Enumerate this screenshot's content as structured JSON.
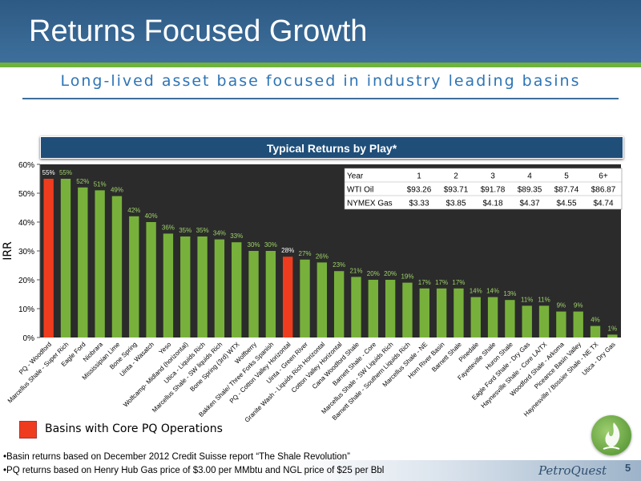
{
  "slide": {
    "title": "Returns Focused Growth",
    "subtitle": "Long-lived asset base focused in industry leading basins",
    "page_number": "5",
    "logo_text": "PetroQuest"
  },
  "chart_banner": "Typical Returns by Play*",
  "legend": {
    "label": "Basins with Core PQ Operations",
    "color": "#f03c1e"
  },
  "footnotes": [
    "•Basin returns based on December 2012 Credit  Suisse report “The Shale Revolution”",
    "•PQ returns based on Henry Hub Gas price of $3.00 per MMbtu and NGL price of $25 per Bbl"
  ],
  "price_table": {
    "header": [
      "Year",
      "1",
      "2",
      "3",
      "4",
      "5",
      "6+"
    ],
    "rows": [
      [
        "WTI Oil",
        "$93.26",
        "$93.71",
        "$91.78",
        "$89.35",
        "$87.74",
        "$86.87"
      ],
      [
        "NYMEX Gas",
        "$3.33",
        "$3.85",
        "$4.18",
        "$4.37",
        "$4.55",
        "$4.74"
      ]
    ]
  },
  "chart_data": {
    "type": "bar",
    "title": "Typical Returns by Play*",
    "ylabel": "IRR",
    "xlabel": "",
    "ylim": [
      0,
      60
    ],
    "yticks": [
      "0%",
      "10%",
      "20%",
      "30%",
      "40%",
      "50%",
      "60%"
    ],
    "grid": false,
    "background": "#2b2b2b",
    "colors": {
      "default": "#77b13b",
      "highlight": "#f03c1e"
    },
    "categories": [
      "PQ - Woodford",
      "Marcellus Shale - Super Rich",
      "Eagle Ford",
      "Niobrara",
      "Mississipian Lime",
      "Bone Spring",
      "Uinta - Wasatch",
      "Yeso",
      "Wolfcamp- Midland (horizontal)",
      "Utica - Liquids Rich",
      "Marcellus Shale - SW liquids Rich",
      "Bone Spring (3rd) WTX",
      "Wolfberry",
      "Bakken Shale/ Three Forks Spanish",
      "PQ - Cotton Valley Horizontal",
      "Uinta - Green River",
      "Granite Wash - Liquids Rich Horizontal",
      "Cotton Valley Horizontal",
      "Cana Woodford Shale",
      "Barnett Shale - Core",
      "Marcellus Shale - SW Liquids Rich",
      "Barnett Shale - Southern Liquids Rich",
      "Marcellus Shale - NE",
      "Horn River Basin",
      "Barnett Shale",
      "Pinedale",
      "Fayetteville Shale",
      "Huron Shale",
      "Eagle Ford Shale - Dry Gas",
      "Haynesville Shale - Core LA/TX",
      "Woodford Shale - Arkoma",
      "Piceance Basin Valley",
      "Haynesville / Bossier Shale - NE TX",
      "Utica - Dry Gas"
    ],
    "values": [
      55,
      55,
      52,
      51,
      49,
      42,
      40,
      36,
      35,
      35,
      34,
      33,
      30,
      30,
      28,
      27,
      26,
      23,
      21,
      20,
      20,
      19,
      17,
      17,
      17,
      14,
      14,
      13,
      11,
      11,
      9,
      9,
      4,
      1
    ],
    "value_labels": [
      "55%",
      "55%",
      "52%",
      "51%",
      "49%",
      "42%",
      "40%",
      "36%",
      "35%",
      "35%",
      "34%",
      "33%",
      "30%",
      "30%",
      "28%",
      "27%",
      "26%",
      "23%",
      "21%",
      "20%",
      "20%",
      "19%",
      "17%",
      "17%",
      "17%",
      "14%",
      "14%",
      "13%",
      "11%",
      "11%",
      "9%",
      "9%",
      "4%",
      "1%"
    ],
    "highlight_categories": [
      "PQ - Woodford",
      "PQ - Cotton Valley Horizontal"
    ]
  }
}
